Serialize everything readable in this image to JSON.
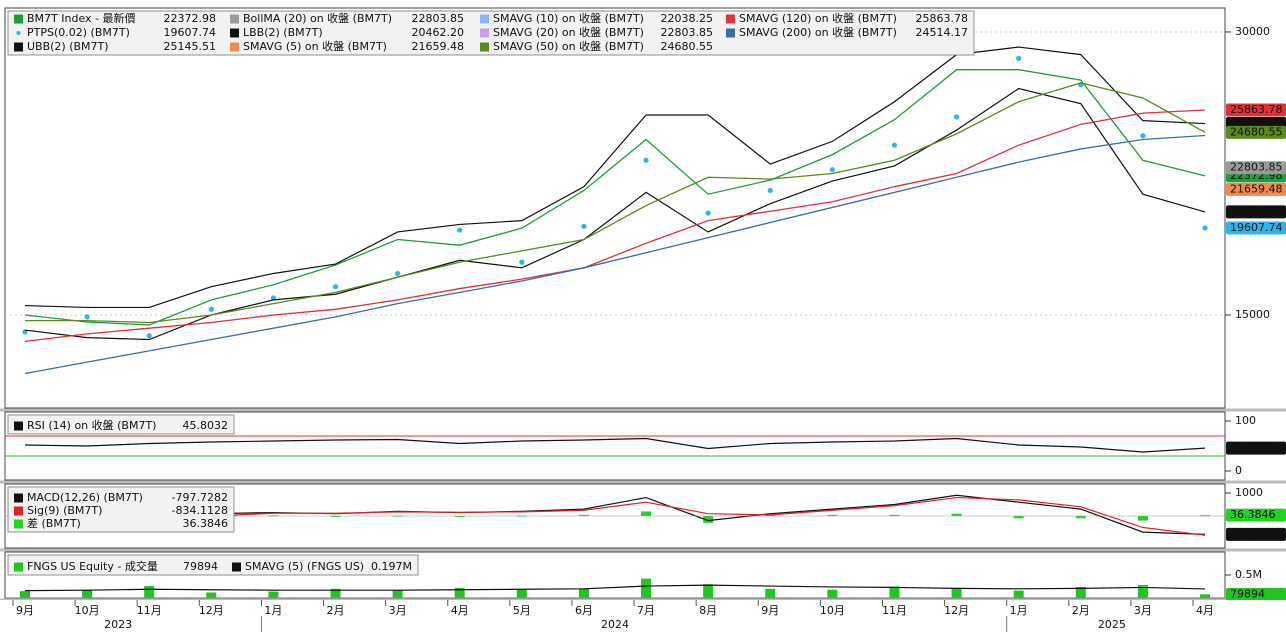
{
  "chart_data": [
    {
      "type": "line",
      "categories": [
        "9月",
        "10月",
        "11月",
        "12月",
        "1月",
        "2月",
        "3月",
        "4月",
        "5月",
        "6月",
        "7月",
        "8月",
        "9月",
        "10月",
        "11月",
        "12月",
        "1月",
        "2月",
        "3月",
        "4月"
      ],
      "years": [
        "2023",
        "2024",
        "2025"
      ],
      "ylim": [
        10070,
        31270
      ],
      "yticks": [
        15000,
        30000
      ],
      "grid": true,
      "series": [
        {
          "name": "BM7T Index - 最新價",
          "color": "#1f9e3a",
          "mark": "line",
          "badge": true,
          "last": 22372.98,
          "values": [
            15000,
            14630,
            14470,
            15800,
            16600,
            17650,
            19000,
            18700,
            19600,
            21600,
            24300,
            21400,
            22150,
            23500,
            25350,
            28000,
            28000,
            27450,
            23200,
            22372.98
          ]
        },
        {
          "name": "PTPS(0.02) (BM7T)",
          "color": "#2fb4ea",
          "mark": "dots",
          "badge": true,
          "last": 19607.74,
          "values": [
            14100,
            14900,
            13900,
            15300,
            15900,
            16500,
            17200,
            19500,
            17800,
            19700,
            23200,
            20400,
            21600,
            22700,
            24000,
            25500,
            28600,
            27200,
            24500,
            19607.74
          ]
        },
        {
          "name": "UBB(2) (BM7T)",
          "color": "#111111",
          "mark": "line",
          "badge": true,
          "last": 25145.51,
          "values": [
            15500,
            15400,
            15400,
            16500,
            17200,
            17700,
            19400,
            19800,
            20000,
            21800,
            25600,
            25600,
            23000,
            24200,
            26300,
            28800,
            29200,
            28800,
            25300,
            25145.51
          ]
        },
        {
          "name": "BollMA (20) on 收盤 (BM7T)",
          "color": "#9a9a9a",
          "mark": "none",
          "badge": true,
          "last": 22803.85
        },
        {
          "name": "LBB(2) (BM7T)",
          "color": "#111111",
          "mark": "line",
          "badge": true,
          "last": 20462.2,
          "last_label": "20462.20",
          "values": [
            14200,
            13800,
            13700,
            15000,
            15800,
            16100,
            17000,
            17900,
            17500,
            19000,
            21500,
            19400,
            20900,
            22100,
            22900,
            24800,
            27000,
            26200,
            21400,
            20462.2
          ]
        },
        {
          "name": "SMAVG (5) on 收盤 (BM7T)",
          "color": "#f08a4b",
          "mark": "none",
          "badge": true,
          "last": 21659.48
        },
        {
          "name": "SMAVG (10) on 收盤 (BM7T)",
          "color": "#8ab4f8",
          "mark": "none",
          "badge": false,
          "last": 22038.25
        },
        {
          "name": "SMAVG (20) on 收盤 (BM7T)",
          "color": "#c9a0e8",
          "mark": "none",
          "badge": false,
          "last": 22803.85
        },
        {
          "name": "SMAVG (50) on 收盤 (BM7T)",
          "color": "#5a8a1a",
          "mark": "line",
          "badge": true,
          "last": 24680.55,
          "values": [
            14700,
            14700,
            14600,
            15000,
            15600,
            16200,
            17000,
            17800,
            18400,
            19000,
            20800,
            22300,
            22200,
            22500,
            23200,
            24600,
            26300,
            27300,
            26500,
            24680.55
          ]
        },
        {
          "name": "SMAVG (120) on 收盤 (BM7T)",
          "color": "#e0303a",
          "mark": "line",
          "badge": true,
          "last": 25863.78,
          "values": [
            13600,
            14000,
            14300,
            14600,
            15000,
            15300,
            15800,
            16400,
            16900,
            17500,
            18800,
            20000,
            20500,
            21000,
            21800,
            22500,
            24000,
            25100,
            25700,
            25863.78
          ]
        },
        {
          "name": "SMAVG (200) on 收盤 (BM7T)",
          "color": "#3a6ea5",
          "mark": "line",
          "badge": false,
          "last": 24514.17,
          "values": [
            11900,
            12500,
            13100,
            13700,
            14300,
            14900,
            15600,
            16200,
            16800,
            17500,
            18300,
            19100,
            19900,
            20700,
            21500,
            22300,
            23100,
            23800,
            24300,
            24514.17
          ]
        }
      ]
    },
    {
      "type": "line",
      "ylim": [
        -18,
        118
      ],
      "yticks": [
        0,
        100
      ],
      "grid": false,
      "reference_lines": [
        {
          "value": 70,
          "color": "#e0303a"
        },
        {
          "value": 30,
          "color": "#22c422"
        }
      ],
      "series": [
        {
          "name": "RSI (14) on 收盤 (BM7T)",
          "color": "#111111",
          "mark": "line",
          "badge": true,
          "last": 45.8032,
          "values": [
            52,
            50,
            55,
            58,
            60,
            62,
            63,
            55,
            60,
            62,
            65,
            45,
            55,
            58,
            60,
            65,
            52,
            48,
            38,
            45.8032
          ]
        }
      ]
    },
    {
      "type": "line",
      "ylim": [
        -1390,
        1390
      ],
      "yticks": [
        1000
      ],
      "grid": false,
      "series": [
        {
          "name": "MACD(12,26) (BM7T)",
          "color": "#111111",
          "mark": "line",
          "badge": true,
          "last": -797.7282,
          "badge_label": "-797.728",
          "values": [
            50,
            -100,
            -200,
            100,
            150,
            100,
            200,
            150,
            200,
            300,
            800,
            -200,
            100,
            300,
            500,
            900,
            600,
            300,
            -700,
            -797.7282
          ]
        },
        {
          "name": "Sig(9) (BM7T)",
          "color": "#e0202a",
          "mark": "line",
          "badge": false,
          "last": -834.1128,
          "values": [
            0,
            -50,
            -150,
            0,
            120,
            120,
            180,
            160,
            180,
            250,
            600,
            100,
            50,
            250,
            450,
            800,
            700,
            400,
            -500,
            -834.1128
          ]
        },
        {
          "name": "差 (BM7T)",
          "color": "#22d422",
          "mark": "bar",
          "badge": true,
          "last": 36.3846,
          "values": [
            50,
            -50,
            -50,
            100,
            30,
            -20,
            20,
            -10,
            20,
            50,
            200,
            -300,
            50,
            50,
            50,
            100,
            -100,
            -100,
            -200,
            36.3846
          ]
        }
      ]
    },
    {
      "type": "bar",
      "ylim": [
        0,
        1000000
      ],
      "yticks": [
        {
          "value": 500000,
          "label": "0.5M"
        }
      ],
      "grid": false,
      "series": [
        {
          "name": "FNGS US Equity - 成交量",
          "color": "#22c422",
          "mark": "bar",
          "badge": true,
          "last": 79894,
          "values": [
            150000,
            180000,
            260000,
            120000,
            140000,
            200000,
            160000,
            220000,
            180000,
            210000,
            420000,
            300000,
            200000,
            180000,
            250000,
            220000,
            160000,
            240000,
            280000,
            79894
          ]
        },
        {
          "name": "SMAVG (5) (FNGS US)",
          "color": "#111111",
          "mark": "line",
          "badge": false,
          "last": 197000,
          "last_label": "0.197M",
          "values": [
            160000,
            170000,
            190000,
            180000,
            170000,
            170000,
            170000,
            180000,
            190000,
            200000,
            260000,
            280000,
            260000,
            240000,
            230000,
            210000,
            200000,
            210000,
            230000,
            197000
          ]
        }
      ]
    }
  ]
}
